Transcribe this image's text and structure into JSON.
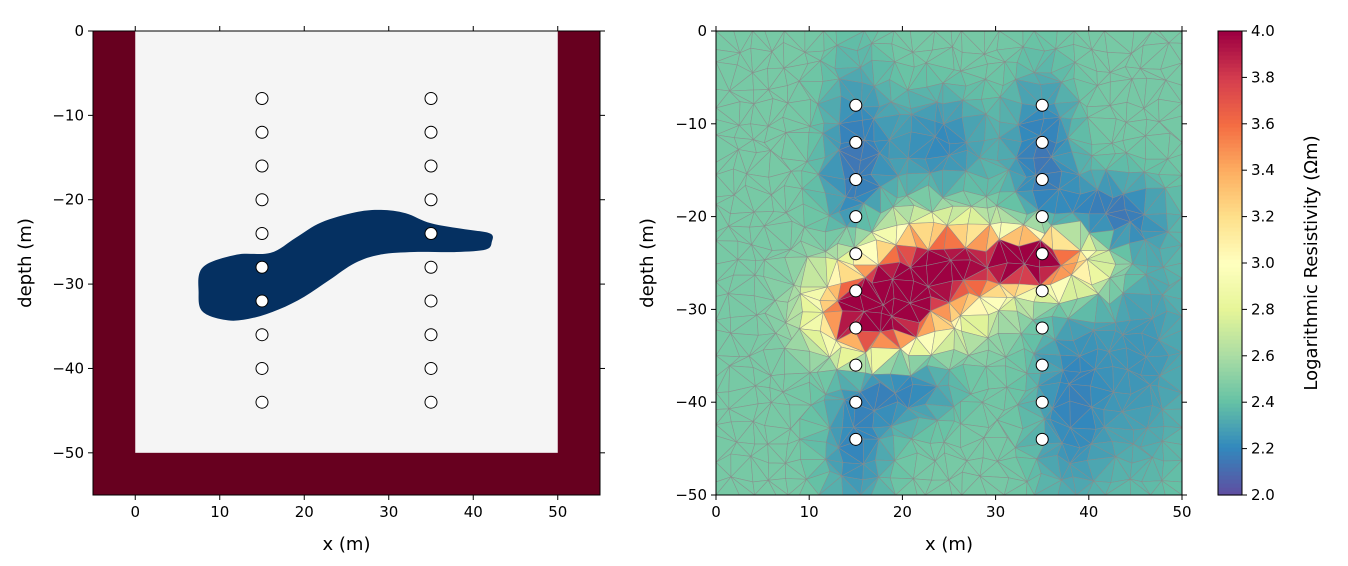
{
  "chart_data": [
    {
      "type": "heatmap",
      "panel": "left",
      "xlabel": "x (m)",
      "ylabel": "depth (m)",
      "xlim": [
        -5,
        55
      ],
      "ylim": [
        -55,
        0
      ],
      "xticks": [
        0,
        10,
        20,
        30,
        40,
        50
      ],
      "yticks": [
        0,
        -10,
        -20,
        -30,
        -40,
        -50
      ],
      "background_colors": {
        "outer": "#67001f",
        "inner": "#f5f5f5",
        "anomaly": "#053061"
      },
      "inner_region": {
        "x": [
          0,
          50
        ],
        "y": [
          -50,
          0
        ]
      },
      "anomaly_outline": [
        [
          8,
          -28
        ],
        [
          12,
          -26.5
        ],
        [
          16,
          -26.3
        ],
        [
          19,
          -24.5
        ],
        [
          22,
          -22.7
        ],
        [
          26,
          -21.5
        ],
        [
          29,
          -21.2
        ],
        [
          32,
          -21.6
        ],
        [
          35,
          -22.8
        ],
        [
          39,
          -23.5
        ],
        [
          42,
          -24
        ],
        [
          42.2,
          -25
        ],
        [
          41.5,
          -25.9
        ],
        [
          38,
          -26.2
        ],
        [
          33,
          -26.2
        ],
        [
          29,
          -26.5
        ],
        [
          26,
          -27.5
        ],
        [
          23,
          -29.5
        ],
        [
          20,
          -31.5
        ],
        [
          17,
          -33
        ],
        [
          14,
          -34
        ],
        [
          11,
          -34.3
        ],
        [
          8,
          -33.3
        ],
        [
          7.5,
          -31
        ],
        [
          8,
          -28
        ]
      ],
      "electrodes": {
        "x": [
          15,
          35
        ],
        "depths": [
          -8,
          -12,
          -16,
          -20,
          -24,
          -28,
          -32,
          -36,
          -40,
          -44
        ]
      }
    },
    {
      "type": "heatmap",
      "panel": "right",
      "xlabel": "x (m)",
      "ylabel": "depth (m)",
      "xlim": [
        0,
        50
      ],
      "ylim": [
        -50,
        0
      ],
      "xticks": [
        0,
        10,
        20,
        30,
        40,
        50
      ],
      "yticks": [
        0,
        -10,
        -20,
        -30,
        -40,
        -50
      ],
      "colorbar": {
        "label": "Logarithmic Resistivity (Ωm)",
        "range": [
          2.0,
          4.0
        ],
        "ticks": [
          "2.0",
          "2.2",
          "2.4",
          "2.6",
          "2.8",
          "3.0",
          "3.2",
          "3.4",
          "3.6",
          "3.8",
          "4.0"
        ],
        "colormap": "Spectral_r"
      },
      "field": {
        "background": 2.45,
        "features": [
          {
            "x": 16.5,
            "y": -30.5,
            "value": 4.0,
            "sx": 3.6,
            "sy": 3.0
          },
          {
            "x": 21,
            "y": -28.5,
            "value": 3.55,
            "sx": 5,
            "sy": 3.5
          },
          {
            "x": 34,
            "y": -24.5,
            "value": 3.85,
            "sx": 2.6,
            "sy": 1.8
          },
          {
            "x": 28,
            "y": -25.5,
            "value": 3.35,
            "sx": 6,
            "sy": 2.5
          },
          {
            "x": 24,
            "y": -23,
            "value": 3.0,
            "sx": 5,
            "sy": 2.5
          },
          {
            "x": 39,
            "y": -25,
            "value": 3.0,
            "sx": 3,
            "sy": 2.5
          },
          {
            "x": 15,
            "y": -15,
            "value": 2.15,
            "sx": 2.5,
            "sy": 8
          },
          {
            "x": 35,
            "y": -13,
            "value": 2.15,
            "sx": 2.5,
            "sy": 6
          },
          {
            "x": 24,
            "y": -12,
            "value": 2.2,
            "sx": 4,
            "sy": 4
          },
          {
            "x": 42,
            "y": -20,
            "value": 2.15,
            "sx": 4,
            "sy": 3
          },
          {
            "x": 20,
            "y": -38,
            "value": 2.15,
            "sx": 4,
            "sy": 3
          },
          {
            "x": 15,
            "y": -45,
            "value": 2.2,
            "sx": 2.5,
            "sy": 5
          },
          {
            "x": 38,
            "y": -40,
            "value": 2.2,
            "sx": 3,
            "sy": 8
          },
          {
            "x": 46,
            "y": -35,
            "value": 2.25,
            "sx": 4,
            "sy": 10
          }
        ]
      },
      "electrodes": {
        "x": [
          15,
          35
        ],
        "depths": [
          -8,
          -12,
          -16,
          -20,
          -24,
          -28,
          -32,
          -36,
          -40,
          -44
        ]
      }
    }
  ]
}
